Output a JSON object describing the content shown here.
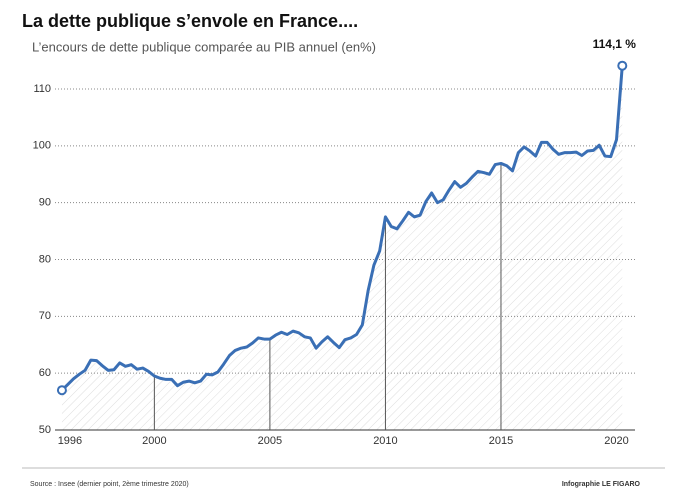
{
  "chart_data": {
    "type": "line",
    "title": "La dette publique s’envole en France....",
    "subtitle": "L’encours de dette publique comparée au PIB annuel (en%)",
    "source": "Source : Insee (dernier point, 2ème trimestre 2020)",
    "credit": "Infographie LE FIGARO",
    "x": [
      1996,
      1996.25,
      1996.5,
      1996.75,
      1997,
      1997.25,
      1997.5,
      1997.75,
      1998,
      1998.25,
      1998.5,
      1998.75,
      1999,
      1999.25,
      1999.5,
      1999.75,
      2000,
      2000.25,
      2000.5,
      2000.75,
      2001,
      2001.25,
      2001.5,
      2001.75,
      2002,
      2002.25,
      2002.5,
      2002.75,
      2003,
      2003.25,
      2003.5,
      2003.75,
      2004,
      2004.25,
      2004.5,
      2004.75,
      2005,
      2005.25,
      2005.5,
      2005.75,
      2006,
      2006.25,
      2006.5,
      2006.75,
      2007,
      2007.25,
      2007.5,
      2007.75,
      2008,
      2008.25,
      2008.5,
      2008.75,
      2009,
      2009.25,
      2009.5,
      2009.75,
      2010,
      2010.25,
      2010.5,
      2010.75,
      2011,
      2011.25,
      2011.5,
      2011.75,
      2012,
      2012.25,
      2012.5,
      2012.75,
      2013,
      2013.25,
      2013.5,
      2013.75,
      2014,
      2014.25,
      2014.5,
      2014.75,
      2015,
      2015.25,
      2015.5,
      2015.75,
      2016,
      2016.25,
      2016.5,
      2016.75,
      2017,
      2017.25,
      2017.5,
      2017.75,
      2018,
      2018.25,
      2018.5,
      2018.75,
      2019,
      2019.25,
      2019.5,
      2019.75,
      2020,
      2020.25
    ],
    "series": [
      {
        "name": "Dette publique",
        "color": "#3a6fb5",
        "values": [
          57,
          58,
          59,
          59.8,
          60.5,
          62.3,
          62.2,
          61.3,
          60.5,
          60.6,
          61.8,
          61.2,
          61.5,
          60.7,
          60.9,
          60.3,
          59.5,
          59.1,
          58.9,
          58.9,
          57.8,
          58.4,
          58.6,
          58.3,
          58.6,
          59.8,
          59.7,
          60.2,
          61.6,
          63.1,
          64,
          64.4,
          64.6,
          65.3,
          66.2,
          66,
          66,
          66.7,
          67.2,
          66.8,
          67.4,
          67.1,
          66.4,
          66.2,
          64.4,
          65.5,
          66.4,
          65.4,
          64.5,
          65.9,
          66.2,
          66.8,
          68.5,
          74.5,
          79,
          81.5,
          87.5,
          85.8,
          85.4,
          86.8,
          88.3,
          87.5,
          87.8,
          90.2,
          91.7,
          90,
          90.5,
          92.2,
          93.7,
          92.7,
          93.4,
          94.5,
          95.5,
          95.3,
          95,
          96.7,
          96.9,
          96.5,
          95.6,
          98.8,
          99.8,
          99.1,
          98.2,
          100.6,
          100.6,
          99.4,
          98.5,
          98.8,
          98.8,
          98.9,
          98.3,
          99.1,
          99.2,
          100.1,
          98.2,
          98.1,
          101.1,
          114.1
        ],
        "value_labels": [
          null,
          null,
          null,
          null,
          null,
          null,
          null,
          null,
          null,
          null,
          null,
          null,
          null,
          null,
          null,
          null,
          null,
          null,
          null,
          null,
          null,
          null,
          null,
          null,
          null,
          null,
          null,
          null,
          null,
          null,
          null,
          null,
          null,
          null,
          null,
          null,
          null,
          null,
          null,
          null,
          null,
          null,
          null,
          null,
          null,
          null,
          null,
          null,
          null,
          null,
          null,
          null,
          null,
          null,
          null,
          null,
          null,
          null,
          null,
          null,
          null,
          null,
          null,
          null,
          null,
          null,
          null,
          null,
          null,
          null,
          null,
          null,
          null,
          null,
          null,
          null,
          null,
          null,
          null,
          null,
          null,
          null,
          null,
          null,
          null,
          null,
          null,
          null,
          null,
          null,
          null,
          null,
          null,
          null,
          null,
          null,
          null,
          "114,1 %"
        ]
      }
    ],
    "xlim": [
      1995.7,
      2020.8
    ],
    "xticks": [
      1996,
      2000,
      2005,
      2010,
      2015,
      2020
    ],
    "ylim": [
      50,
      110
    ],
    "yticks": [
      50,
      60,
      70,
      80,
      90,
      100,
      110
    ],
    "grid": true
  }
}
